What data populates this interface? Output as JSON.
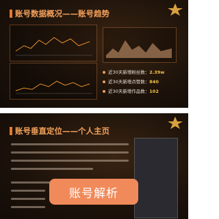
{
  "slides": [
    {
      "title": "账号数据概况——账号趋势",
      "bullets": [
        {
          "label": "近30天新增粉丝数：",
          "value": "2.39w"
        },
        {
          "label": "近30天新增点赞数：",
          "value": "840"
        },
        {
          "label": "近30天新增作品数：",
          "value": "102"
        }
      ]
    },
    {
      "title": "账号垂直定位——个人主页"
    }
  ],
  "button": {
    "label": "账号解析"
  }
}
